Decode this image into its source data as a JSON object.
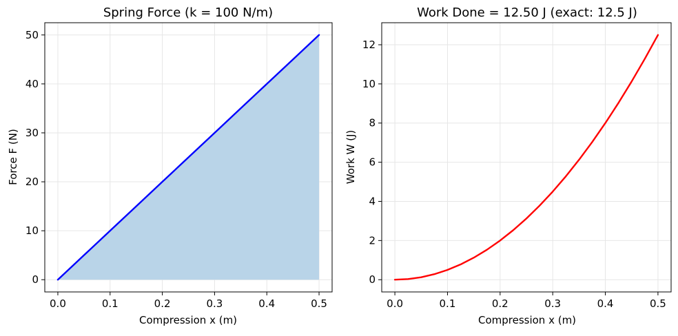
{
  "chart_data": [
    {
      "type": "area",
      "title": "Spring Force (k = 100 N/m)",
      "xlabel": "Compression x (m)",
      "ylabel": "Force F (N)",
      "xlim": [
        -0.025,
        0.525
      ],
      "ylim": [
        -2.5,
        52.5
      ],
      "xticks": [
        "0.0",
        "0.1",
        "0.2",
        "0.3",
        "0.4",
        "0.5"
      ],
      "yticks": [
        "0",
        "10",
        "20",
        "30",
        "40",
        "50"
      ],
      "grid": true,
      "series": [
        {
          "x": [
            0,
            0.05,
            0.1,
            0.15,
            0.2,
            0.25,
            0.3,
            0.35,
            0.4,
            0.45,
            0.5
          ],
          "values": [
            0,
            5,
            10,
            15,
            20,
            25,
            30,
            35,
            40,
            45,
            50
          ],
          "line_color": "#0000ff",
          "fill_color": "#b9d4e8"
        }
      ]
    },
    {
      "type": "line",
      "title": "Work Done = 12.50 J (exact: 12.5 J)",
      "xlabel": "Compression x (m)",
      "ylabel": "Work W (J)",
      "xlim": [
        -0.025,
        0.525
      ],
      "ylim": [
        -0.625,
        13.125
      ],
      "xticks": [
        "0.0",
        "0.1",
        "0.2",
        "0.3",
        "0.4",
        "0.5"
      ],
      "yticks": [
        "0",
        "2",
        "4",
        "6",
        "8",
        "10",
        "12"
      ],
      "grid": true,
      "series": [
        {
          "x": [
            0,
            0.025,
            0.05,
            0.075,
            0.1,
            0.125,
            0.15,
            0.175,
            0.2,
            0.225,
            0.25,
            0.275,
            0.3,
            0.325,
            0.35,
            0.375,
            0.4,
            0.425,
            0.45,
            0.475,
            0.5
          ],
          "values": [
            0,
            0.03125,
            0.125,
            0.28125,
            0.5,
            0.78125,
            1.125,
            1.53125,
            2.0,
            2.53125,
            3.125,
            3.78125,
            4.5,
            5.28125,
            6.125,
            7.03125,
            8.0,
            9.03125,
            10.125,
            11.28125,
            12.5
          ],
          "line_color": "#ff0000"
        }
      ]
    }
  ]
}
